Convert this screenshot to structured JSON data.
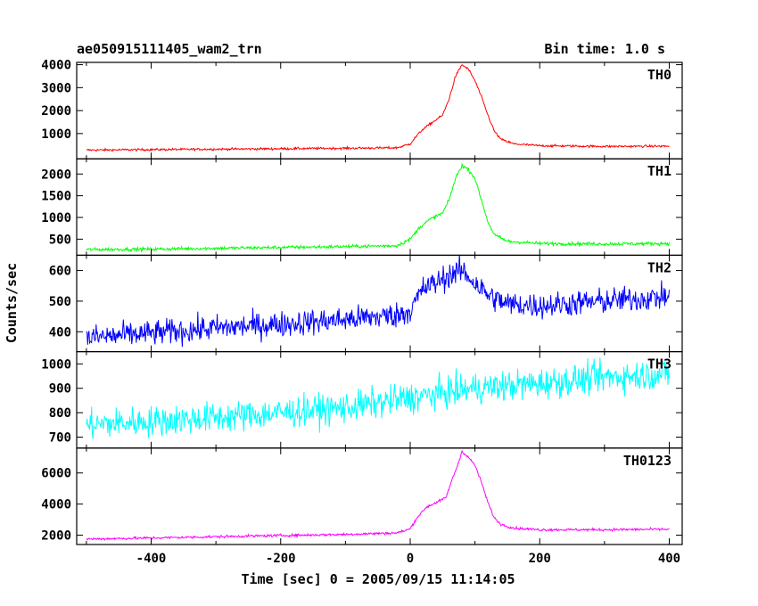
{
  "chart_data": {
    "type": "line",
    "title": "ae050915111405_wam2_trn",
    "subtitle": "Bin time: 1.0 s",
    "xlabel": "Time [sec] 0 = 2005/09/15 11:14:05",
    "ylabel": "Counts/sec",
    "xlim": [
      -515,
      420
    ],
    "xticks": [
      -400,
      -200,
      0,
      200,
      400
    ],
    "grid": false,
    "panels": [
      {
        "name": "TH0",
        "color": "#ff0000",
        "ylim": [
          -100,
          4100
        ],
        "yticks": [
          1000,
          2000,
          3000,
          4000
        ],
        "points": [
          [
            -500,
            280
          ],
          [
            -400,
            300
          ],
          [
            -300,
            320
          ],
          [
            -200,
            340
          ],
          [
            -100,
            360
          ],
          [
            -20,
            380
          ],
          [
            0,
            550
          ],
          [
            10,
            900
          ],
          [
            20,
            1200
          ],
          [
            30,
            1400
          ],
          [
            40,
            1600
          ],
          [
            50,
            1800
          ],
          [
            60,
            2500
          ],
          [
            70,
            3500
          ],
          [
            80,
            4000
          ],
          [
            90,
            3800
          ],
          [
            100,
            3300
          ],
          [
            110,
            2600
          ],
          [
            120,
            1800
          ],
          [
            130,
            1100
          ],
          [
            140,
            750
          ],
          [
            160,
            550
          ],
          [
            200,
            470
          ],
          [
            300,
            440
          ],
          [
            400,
            450
          ]
        ],
        "noise": 35
      },
      {
        "name": "TH1",
        "color": "#00ff00",
        "ylim": [
          130,
          2350
        ],
        "yticks": [
          500,
          1000,
          1500,
          2000
        ],
        "points": [
          [
            -500,
            260
          ],
          [
            -400,
            270
          ],
          [
            -300,
            290
          ],
          [
            -200,
            310
          ],
          [
            -100,
            330
          ],
          [
            -20,
            350
          ],
          [
            0,
            500
          ],
          [
            15,
            780
          ],
          [
            30,
            950
          ],
          [
            50,
            1100
          ],
          [
            60,
            1400
          ],
          [
            70,
            1900
          ],
          [
            80,
            2200
          ],
          [
            90,
            2100
          ],
          [
            100,
            1900
          ],
          [
            110,
            1400
          ],
          [
            120,
            900
          ],
          [
            130,
            600
          ],
          [
            150,
            450
          ],
          [
            200,
            400
          ],
          [
            300,
            390
          ],
          [
            400,
            400
          ]
        ],
        "noise": 28
      },
      {
        "name": "TH2",
        "color": "#0000ff",
        "ylim": [
          335,
          650
        ],
        "yticks": [
          400,
          500,
          600
        ],
        "points": [
          [
            -500,
            380
          ],
          [
            -400,
            395
          ],
          [
            -300,
            412
          ],
          [
            -200,
            425
          ],
          [
            -100,
            440
          ],
          [
            -20,
            455
          ],
          [
            0,
            470
          ],
          [
            20,
            540
          ],
          [
            40,
            560
          ],
          [
            60,
            585
          ],
          [
            80,
            600
          ],
          [
            100,
            560
          ],
          [
            120,
            520
          ],
          [
            150,
            490
          ],
          [
            200,
            485
          ],
          [
            300,
            500
          ],
          [
            400,
            515
          ]
        ],
        "noise": 30
      },
      {
        "name": "TH3",
        "color": "#00ffff",
        "ylim": [
          655,
          1050
        ],
        "yticks": [
          700,
          800,
          900,
          1000
        ],
        "points": [
          [
            -500,
            750
          ],
          [
            -300,
            780
          ],
          [
            -100,
            820
          ],
          [
            0,
            860
          ],
          [
            100,
            900
          ],
          [
            200,
            920
          ],
          [
            300,
            945
          ],
          [
            400,
            960
          ]
        ],
        "noise": 45
      },
      {
        "name": "TH0123",
        "color": "#ff00ff",
        "ylim": [
          1400,
          7600
        ],
        "yticks": [
          2000,
          4000,
          6000
        ],
        "points": [
          [
            -500,
            1750
          ],
          [
            -400,
            1820
          ],
          [
            -300,
            1900
          ],
          [
            -200,
            1980
          ],
          [
            -100,
            2050
          ],
          [
            -20,
            2150
          ],
          [
            0,
            2400
          ],
          [
            10,
            3100
          ],
          [
            25,
            3800
          ],
          [
            40,
            4100
          ],
          [
            55,
            4400
          ],
          [
            65,
            5600
          ],
          [
            75,
            6700
          ],
          [
            80,
            7400
          ],
          [
            90,
            7000
          ],
          [
            100,
            6500
          ],
          [
            110,
            5400
          ],
          [
            120,
            4100
          ],
          [
            130,
            3100
          ],
          [
            140,
            2700
          ],
          [
            160,
            2450
          ],
          [
            200,
            2350
          ],
          [
            300,
            2350
          ],
          [
            400,
            2380
          ]
        ],
        "noise": 60
      }
    ]
  }
}
